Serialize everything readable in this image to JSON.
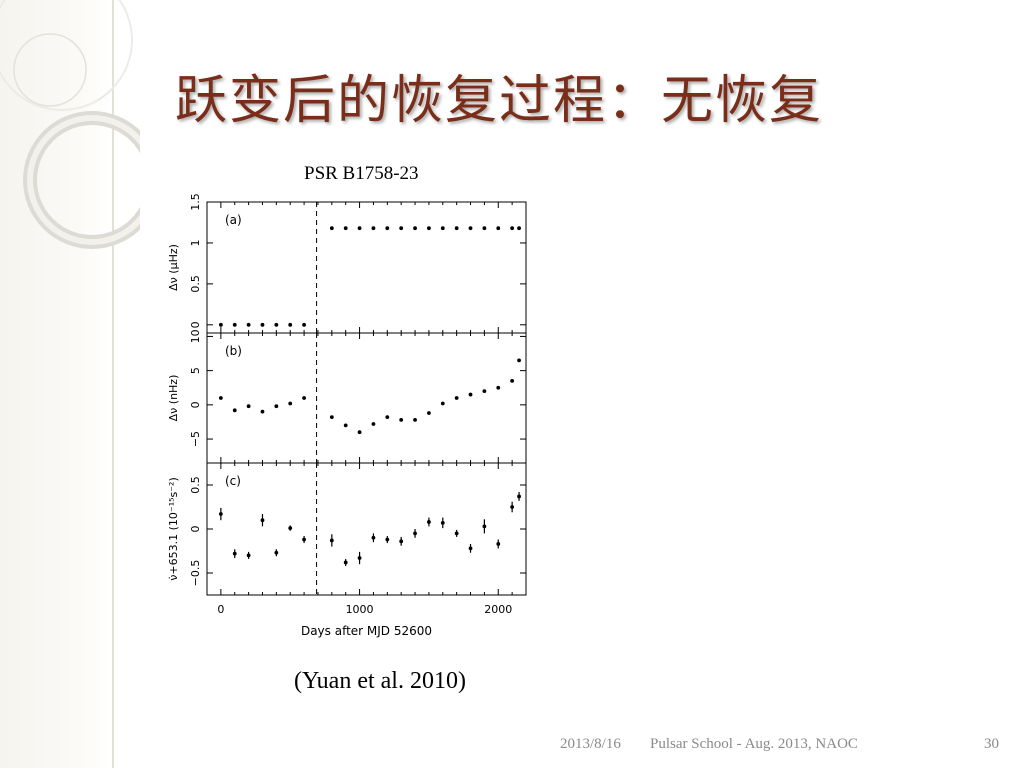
{
  "slide": {
    "title": "跃变后的恢复过程：无恢复",
    "pulsar_label": "PSR B1758-23",
    "citation": "(Yuan et al. 2010)"
  },
  "footer": {
    "date": "2013/8/16",
    "center": "Pulsar School  - Aug. 2013, NAOC",
    "page": "30"
  },
  "colors": {
    "title": "#7a2e1a",
    "footer": "#8a8a8a",
    "sidebar": "#f6f4ef"
  },
  "chart_data": {
    "type": "scatter",
    "xlabel": "Days after MJD 52600",
    "xlim": [
      -100,
      2200
    ],
    "xticks": [
      0,
      1000,
      2000
    ],
    "glitch_x": 690,
    "grid": false,
    "panels": [
      {
        "label": "(a)",
        "ylabel": "Δν (μHz)",
        "ylim": [
          -0.1,
          1.5
        ],
        "yticks": [
          "0",
          "0.5",
          "1",
          "1.5"
        ],
        "yticks_values": [
          0,
          0.5,
          1,
          1.5
        ],
        "points": [
          {
            "x": 0,
            "y": 0
          },
          {
            "x": 100,
            "y": 0
          },
          {
            "x": 200,
            "y": 0
          },
          {
            "x": 300,
            "y": 0
          },
          {
            "x": 400,
            "y": 0
          },
          {
            "x": 500,
            "y": 0
          },
          {
            "x": 600,
            "y": 0
          },
          {
            "x": 800,
            "y": 1.18
          },
          {
            "x": 900,
            "y": 1.18
          },
          {
            "x": 1000,
            "y": 1.18
          },
          {
            "x": 1100,
            "y": 1.18
          },
          {
            "x": 1200,
            "y": 1.18
          },
          {
            "x": 1300,
            "y": 1.18
          },
          {
            "x": 1400,
            "y": 1.18
          },
          {
            "x": 1500,
            "y": 1.18
          },
          {
            "x": 1600,
            "y": 1.18
          },
          {
            "x": 1700,
            "y": 1.18
          },
          {
            "x": 1800,
            "y": 1.18
          },
          {
            "x": 1900,
            "y": 1.18
          },
          {
            "x": 2000,
            "y": 1.18
          },
          {
            "x": 2100,
            "y": 1.18
          },
          {
            "x": 2150,
            "y": 1.18
          }
        ]
      },
      {
        "label": "(b)",
        "ylabel": "Δν (nHz)",
        "ylim": [
          -8.5,
          10.5
        ],
        "yticks": [
          "−5",
          "0",
          "5",
          "10"
        ],
        "yticks_values": [
          -5,
          0,
          5,
          10
        ],
        "points": [
          {
            "x": 0,
            "y": 1
          },
          {
            "x": 100,
            "y": -0.8
          },
          {
            "x": 200,
            "y": -0.2
          },
          {
            "x": 300,
            "y": -1
          },
          {
            "x": 400,
            "y": -0.2
          },
          {
            "x": 500,
            "y": 0.2
          },
          {
            "x": 600,
            "y": 1
          },
          {
            "x": 800,
            "y": -1.8
          },
          {
            "x": 900,
            "y": -3
          },
          {
            "x": 1000,
            "y": -4
          },
          {
            "x": 1100,
            "y": -2.8
          },
          {
            "x": 1200,
            "y": -1.8
          },
          {
            "x": 1300,
            "y": -2.2
          },
          {
            "x": 1400,
            "y": -2.2
          },
          {
            "x": 1500,
            "y": -1.2
          },
          {
            "x": 1600,
            "y": 0.2
          },
          {
            "x": 1700,
            "y": 1
          },
          {
            "x": 1800,
            "y": 1.5
          },
          {
            "x": 1900,
            "y": 2
          },
          {
            "x": 2000,
            "y": 2.5
          },
          {
            "x": 2100,
            "y": 3.5
          },
          {
            "x": 2150,
            "y": 6.5
          }
        ]
      },
      {
        "label": "(c)",
        "ylabel": "ν̇+653.1 (10⁻¹⁵s⁻²)",
        "ylim": [
          -0.75,
          0.75
        ],
        "yticks": [
          "−0.5",
          "0",
          "0.5"
        ],
        "yticks_values": [
          -0.5,
          0,
          0.5
        ],
        "points": [
          {
            "x": 0,
            "y": 0.17,
            "err": 0.07
          },
          {
            "x": 100,
            "y": -0.28,
            "err": 0.05
          },
          {
            "x": 200,
            "y": -0.3,
            "err": 0.04
          },
          {
            "x": 300,
            "y": 0.1,
            "err": 0.07
          },
          {
            "x": 400,
            "y": -0.27,
            "err": 0.04
          },
          {
            "x": 500,
            "y": 0.01,
            "err": 0.03
          },
          {
            "x": 600,
            "y": -0.12,
            "err": 0.04
          },
          {
            "x": 800,
            "y": -0.13,
            "err": 0.07
          },
          {
            "x": 900,
            "y": -0.38,
            "err": 0.04
          },
          {
            "x": 1000,
            "y": -0.33,
            "err": 0.07
          },
          {
            "x": 1100,
            "y": -0.1,
            "err": 0.05
          },
          {
            "x": 1200,
            "y": -0.12,
            "err": 0.04
          },
          {
            "x": 1300,
            "y": -0.14,
            "err": 0.05
          },
          {
            "x": 1400,
            "y": -0.05,
            "err": 0.05
          },
          {
            "x": 1500,
            "y": 0.08,
            "err": 0.05
          },
          {
            "x": 1600,
            "y": 0.07,
            "err": 0.06
          },
          {
            "x": 1700,
            "y": -0.05,
            "err": 0.04
          },
          {
            "x": 1800,
            "y": -0.22,
            "err": 0.05
          },
          {
            "x": 1900,
            "y": 0.03,
            "err": 0.08
          },
          {
            "x": 2000,
            "y": -0.17,
            "err": 0.05
          },
          {
            "x": 2100,
            "y": 0.25,
            "err": 0.06
          },
          {
            "x": 2150,
            "y": 0.37,
            "err": 0.05
          }
        ]
      }
    ]
  }
}
